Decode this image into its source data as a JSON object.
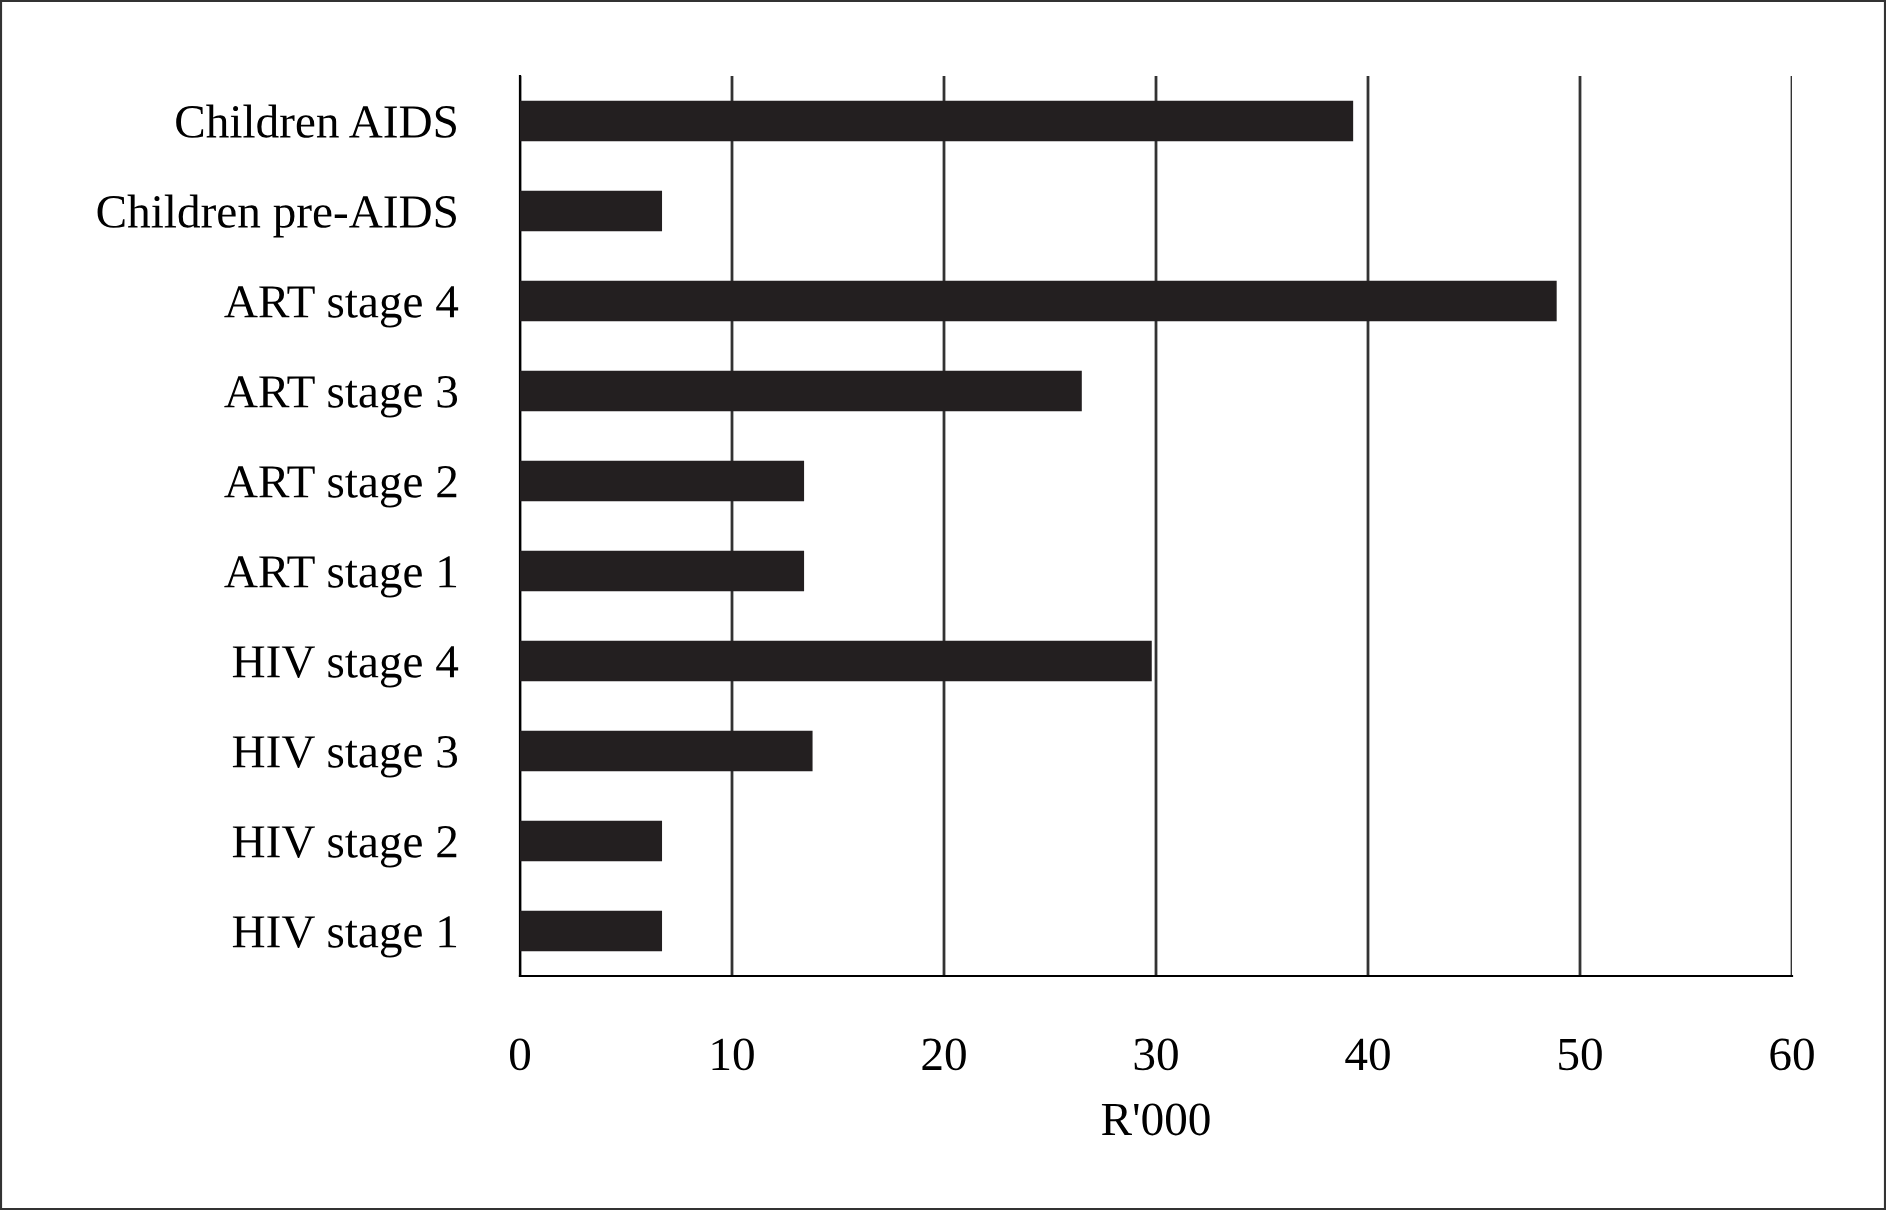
{
  "chart_data": {
    "type": "bar",
    "orientation": "horizontal",
    "xlabel": "R'000",
    "categories": [
      "Children AIDS",
      "Children pre-AIDS",
      "ART stage 4",
      "ART stage 3",
      "ART stage 2",
      "ART stage 1",
      "HIV stage 4",
      "HIV stage 3",
      "HIV stage 2",
      "HIV stage 1"
    ],
    "values": [
      39.3,
      6.7,
      48.9,
      26.5,
      13.4,
      13.4,
      29.8,
      13.8,
      6.7,
      6.7
    ],
    "color": "#231f20",
    "xlim": [
      0,
      60
    ],
    "xticks": [
      0,
      10,
      20,
      30,
      40,
      50,
      60
    ],
    "grid": "x"
  }
}
